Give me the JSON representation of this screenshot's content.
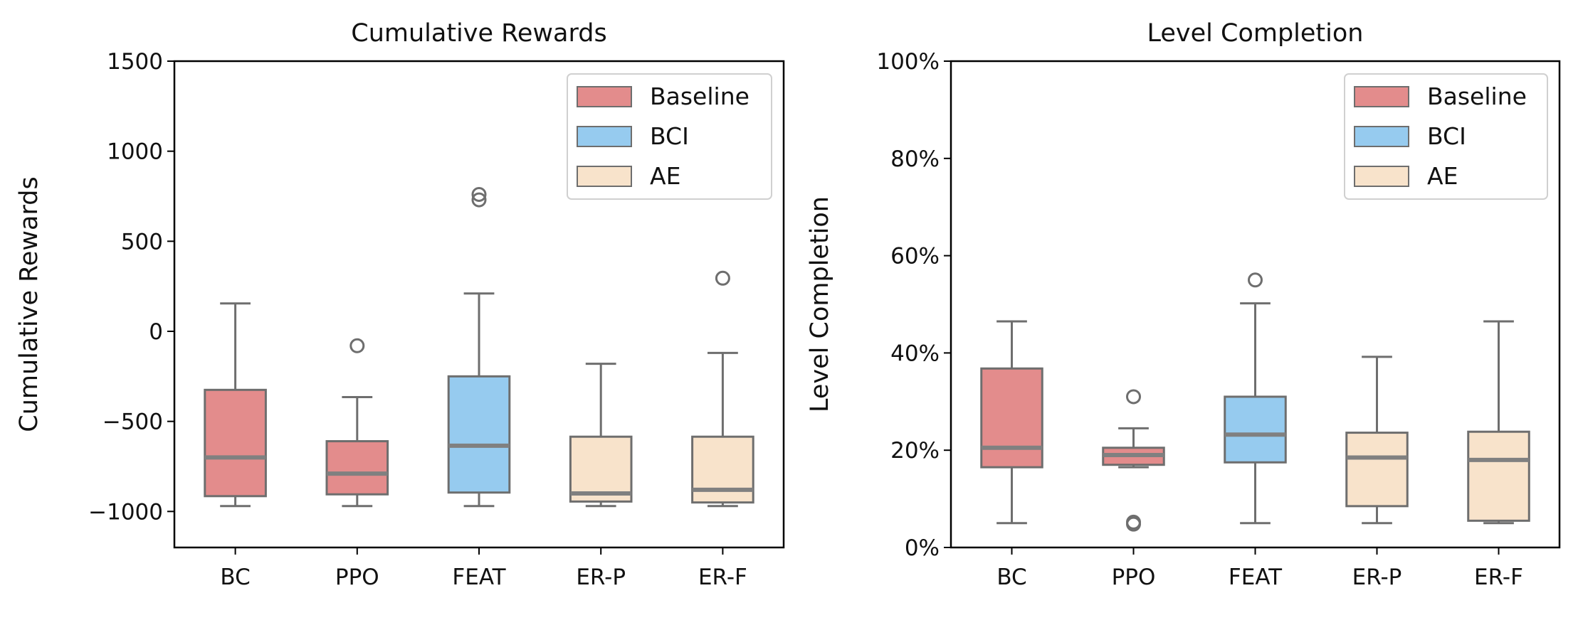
{
  "chart_data": [
    {
      "type": "box",
      "title": "Cumulative Rewards",
      "xlabel": "",
      "ylabel": "Cumulative Rewards",
      "ylim": [
        -1200,
        1500
      ],
      "yticks": [
        -1000,
        -500,
        0,
        500,
        1000,
        1500
      ],
      "ytick_labels": [
        "−1000",
        "−500",
        "0",
        "500",
        "1000",
        "1500"
      ],
      "grid": false,
      "legend_position": "top-right",
      "legend": [
        {
          "label": "Baseline",
          "color": "#e38c8c"
        },
        {
          "label": "BCI",
          "color": "#96cbef"
        },
        {
          "label": "AE",
          "color": "#f8e3cb"
        }
      ],
      "categories": [
        "BC",
        "PPO",
        "FEAT",
        "ER-P",
        "ER-F"
      ],
      "boxes": [
        {
          "category": "BC",
          "group": "Baseline",
          "min": -970,
          "q1": -915,
          "median": -700,
          "q3": -325,
          "max": 155,
          "outliers": []
        },
        {
          "category": "PPO",
          "group": "Baseline",
          "min": -970,
          "q1": -905,
          "median": -790,
          "q3": -610,
          "max": -365,
          "outliers": [
            -80
          ]
        },
        {
          "category": "FEAT",
          "group": "BCI",
          "min": -970,
          "q1": -895,
          "median": -635,
          "q3": -250,
          "max": 210,
          "outliers": [
            730,
            760
          ]
        },
        {
          "category": "ER-P",
          "group": "AE",
          "min": -970,
          "q1": -945,
          "median": -900,
          "q3": -585,
          "max": -180,
          "outliers": []
        },
        {
          "category": "ER-F",
          "group": "AE",
          "min": -970,
          "q1": -950,
          "median": -880,
          "q3": -585,
          "max": -120,
          "outliers": [
            295
          ]
        }
      ]
    },
    {
      "type": "box",
      "title": "Level Completion",
      "xlabel": "",
      "ylabel": "Level Completion",
      "ylim": [
        0,
        100
      ],
      "yticks": [
        0,
        20,
        40,
        60,
        80,
        100
      ],
      "ytick_labels": [
        "0%",
        "20%",
        "40%",
        "60%",
        "80%",
        "100%"
      ],
      "grid": false,
      "legend_position": "top-right",
      "legend": [
        {
          "label": "Baseline",
          "color": "#e38c8c"
        },
        {
          "label": "BCI",
          "color": "#96cbef"
        },
        {
          "label": "AE",
          "color": "#f8e3cb"
        }
      ],
      "categories": [
        "BC",
        "PPO",
        "FEAT",
        "ER-P",
        "ER-F"
      ],
      "boxes": [
        {
          "category": "BC",
          "group": "Baseline",
          "min": 5,
          "q1": 16.5,
          "median": 20.5,
          "q3": 36.8,
          "max": 46.5,
          "outliers": []
        },
        {
          "category": "PPO",
          "group": "Baseline",
          "min": 16.5,
          "q1": 17,
          "median": 19,
          "q3": 20.5,
          "max": 24.5,
          "outliers": [
            31,
            5.2,
            4.8
          ]
        },
        {
          "category": "FEAT",
          "group": "BCI",
          "min": 5,
          "q1": 17.5,
          "median": 23.2,
          "q3": 31,
          "max": 50.2,
          "outliers": [
            55
          ]
        },
        {
          "category": "ER-P",
          "group": "AE",
          "min": 5,
          "q1": 8.5,
          "median": 18.5,
          "q3": 23.6,
          "max": 39.2,
          "outliers": []
        },
        {
          "category": "ER-F",
          "group": "AE",
          "min": 5,
          "q1": 5.5,
          "median": 18,
          "q3": 23.8,
          "max": 46.5,
          "outliers": []
        }
      ]
    }
  ]
}
